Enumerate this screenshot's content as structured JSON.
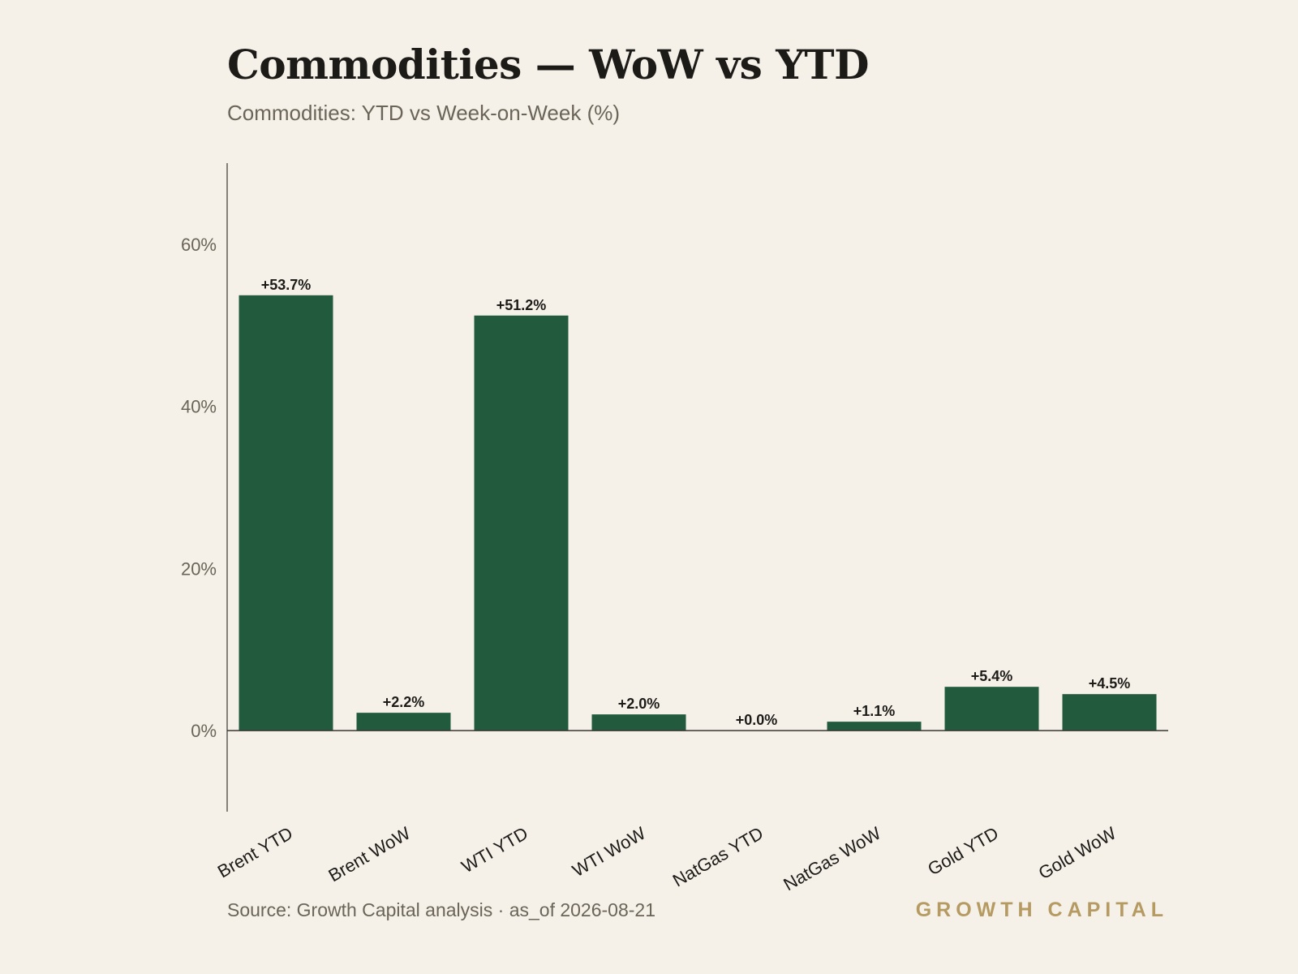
{
  "header": {
    "title": "Commodities — WoW vs YTD",
    "subtitle": "Commodities: YTD vs Week-on-Week (%)"
  },
  "footer": {
    "source": "Source: Growth Capital analysis · as_of 2026-08-21",
    "brand": "GROWTH CAPITAL"
  },
  "colors": {
    "bar": "#215a3c",
    "axis": "#3a3732",
    "tick_text": "#6b6559",
    "label_text": "#1d1b18",
    "brand": "#b59a62",
    "background": "#f5f1e9"
  },
  "chart_data": {
    "type": "bar",
    "title": "Commodities — WoW vs YTD",
    "subtitle": "Commodities: YTD vs Week-on-Week (%)",
    "categories": [
      "Brent YTD",
      "Brent WoW",
      "WTI YTD",
      "WTI WoW",
      "NatGas YTD",
      "NatGas WoW",
      "Gold YTD",
      "Gold WoW"
    ],
    "values": [
      53.7,
      2.2,
      51.2,
      2.0,
      0.0,
      1.1,
      5.4,
      4.5
    ],
    "data_labels": [
      "+53.7%",
      "+2.2%",
      "+51.2%",
      "+2.0%",
      "+0.0%",
      "+1.1%",
      "+5.4%",
      "+4.5%"
    ],
    "ylim": [
      -10,
      70
    ],
    "yticks": [
      0,
      20,
      40,
      60
    ],
    "ytick_labels": [
      "0%",
      "20%",
      "40%",
      "60%"
    ],
    "xlabel": "",
    "ylabel": "",
    "grid": false,
    "legend": "none"
  }
}
